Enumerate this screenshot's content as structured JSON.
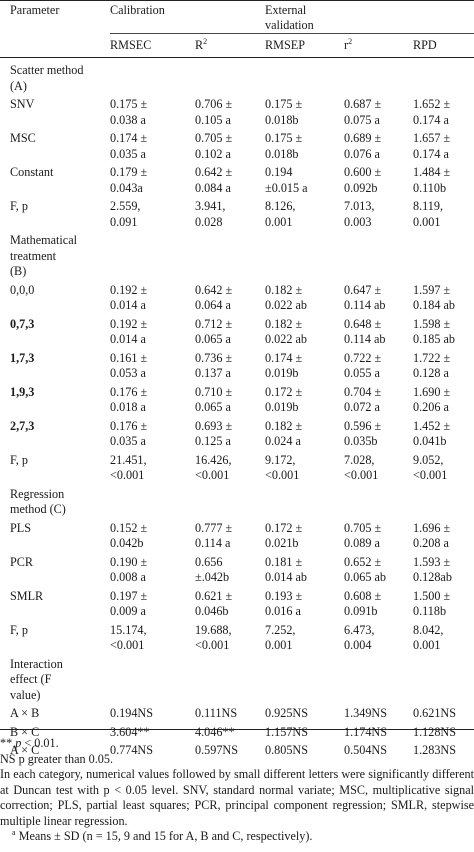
{
  "header": {
    "parameter": "Parameter",
    "calibration": "Calibration",
    "external_line1": "External",
    "external_line2": "validation",
    "rmsec": "RMSEC",
    "r2_base": "R",
    "r2_sup": "2",
    "rmsep": "RMSEP",
    "r2v_base": "r",
    "r2v_sup": "2",
    "rpd": "RPD"
  },
  "rows": [
    {
      "label": [
        "Scatter method",
        "(A)"
      ],
      "bold": false,
      "cells": []
    },
    {
      "label": [
        "SNV"
      ],
      "bold": false,
      "cells": [
        [
          "0.175 ±",
          "0.038 a"
        ],
        [
          "0.706 ±",
          "0.105 a"
        ],
        [
          "0.175 ±",
          "0.018b"
        ],
        [
          "0.687 ±",
          "0.075 a"
        ],
        [
          "1.652 ±",
          "0.174 a"
        ]
      ]
    },
    {
      "label": [
        "MSC"
      ],
      "bold": false,
      "cells": [
        [
          "0.174 ±",
          "0.035 a"
        ],
        [
          "0.705 ±",
          "0.102 a"
        ],
        [
          "0.175 ±",
          "0.018b"
        ],
        [
          "0.689 ±",
          "0.076 a"
        ],
        [
          "1.657 ±",
          "0.174 a"
        ]
      ]
    },
    {
      "label": [
        "Constant"
      ],
      "bold": false,
      "cells": [
        [
          "0.179 ±",
          "0.043a"
        ],
        [
          "0.642 ±",
          "0.084 a"
        ],
        [
          "0.194",
          "±0.015 a"
        ],
        [
          "0.600 ±",
          "0.092b"
        ],
        [
          "1.484 ±",
          "0.110b"
        ]
      ]
    },
    {
      "label": [
        "F, p"
      ],
      "bold": false,
      "cells": [
        [
          "2.559,",
          "0.091"
        ],
        [
          "3.941,",
          "0.028"
        ],
        [
          "8.126,",
          "0.001"
        ],
        [
          "7.013,",
          "0.003"
        ],
        [
          "8.119,",
          "0.001"
        ]
      ]
    },
    {
      "label": [
        "Mathematical",
        "treatment",
        "(B)"
      ],
      "bold": false,
      "cells": []
    },
    {
      "label": [
        "0,0,0"
      ],
      "bold": false,
      "cells": [
        [
          "0.192 ±",
          "0.014 a"
        ],
        [
          "0.642 ±",
          "0.064 a"
        ],
        [
          "0.182 ±",
          "0.022 ab"
        ],
        [
          "0.647 ±",
          "0.114 ab"
        ],
        [
          "1.597 ±",
          "0.184 ab"
        ]
      ]
    },
    {
      "label": [
        "0,7,3"
      ],
      "bold": true,
      "cells": [
        [
          "0.192 ±",
          "0.014 a"
        ],
        [
          "0.712 ±",
          "0.065 a"
        ],
        [
          "0.182 ±",
          "0.022 ab"
        ],
        [
          "0.648 ±",
          "0.114 ab"
        ],
        [
          "1.598 ±",
          "0.185 ab"
        ]
      ]
    },
    {
      "label": [
        "1,7,3"
      ],
      "bold": true,
      "cells": [
        [
          "0.161 ±",
          "0.053 a"
        ],
        [
          "0.736 ±",
          "0.137 a"
        ],
        [
          "0.174 ±",
          "0.019b"
        ],
        [
          "0.722 ±",
          "0.055 a"
        ],
        [
          "1.722 ±",
          "0.128 a"
        ]
      ]
    },
    {
      "label": [
        "1,9,3"
      ],
      "bold": true,
      "cells": [
        [
          "0.176 ±",
          "0.018 a"
        ],
        [
          "0.710 ±",
          "0.065 a"
        ],
        [
          "0.172 ±",
          "0.019b"
        ],
        [
          "0.704 ±",
          "0.072 a"
        ],
        [
          "1.690 ±",
          "0.206 a"
        ]
      ]
    },
    {
      "label": [
        "2,7,3"
      ],
      "bold": true,
      "cells": [
        [
          "0.176 ±",
          "0.035 a"
        ],
        [
          "0.693 ±",
          "0.125 a"
        ],
        [
          "0.182 ±",
          "0.024 a"
        ],
        [
          "0.596 ±",
          "0.035b"
        ],
        [
          "1.452 ±",
          "0.041b"
        ]
      ]
    },
    {
      "label": [
        "F, p"
      ],
      "bold": false,
      "cells": [
        [
          "21.451,",
          "<0.001"
        ],
        [
          "16.426,",
          "<0.001"
        ],
        [
          "9.172,",
          "<0.001"
        ],
        [
          "7.028,",
          "<0.001"
        ],
        [
          "9.052,",
          "<0.001"
        ]
      ]
    },
    {
      "label": [
        "Regression",
        "method (C)"
      ],
      "bold": false,
      "cells": []
    },
    {
      "label": [
        "PLS"
      ],
      "bold": false,
      "cells": [
        [
          "0.152 ±",
          "0.042b"
        ],
        [
          "0.777 ±",
          "0.114 a"
        ],
        [
          "0.172 ±",
          "0.021b"
        ],
        [
          "0.705 ±",
          "0.089 a"
        ],
        [
          "1.696 ±",
          "0.208 a"
        ]
      ]
    },
    {
      "label": [
        "PCR"
      ],
      "bold": false,
      "cells": [
        [
          "0.190 ±",
          "0.008 a"
        ],
        [
          "0.656",
          "±.042b"
        ],
        [
          "0.181 ±",
          "0.014 ab"
        ],
        [
          "0.652 ±",
          "0.065 ab"
        ],
        [
          "1.593 ±",
          "0.128ab"
        ]
      ]
    },
    {
      "label": [
        "SMLR"
      ],
      "bold": false,
      "cells": [
        [
          "0.197 ±",
          "0.009 a"
        ],
        [
          "0.621 ±",
          "0.046b"
        ],
        [
          "0.193 ±",
          "0.016 a"
        ],
        [
          "0.608 ±",
          "0.091b"
        ],
        [
          "1.500 ±",
          "0.118b"
        ]
      ]
    },
    {
      "label": [
        "F, p"
      ],
      "bold": false,
      "cells": [
        [
          "15.174,",
          "<0.001"
        ],
        [
          "19.688,",
          "<0.001"
        ],
        [
          "7.252,",
          "0.001"
        ],
        [
          "6.473,",
          "0.004"
        ],
        [
          "8.042,",
          "0.001"
        ]
      ]
    },
    {
      "label": [
        "Interaction",
        "effect (F",
        "value)"
      ],
      "bold": false,
      "cells": []
    },
    {
      "label": [
        "A × B"
      ],
      "bold": false,
      "cells": [
        [
          "0.194NS"
        ],
        [
          "0.111NS"
        ],
        [
          "0.925NS"
        ],
        [
          "1.349NS"
        ],
        [
          "0.621NS"
        ]
      ]
    },
    {
      "label": [
        "B × C"
      ],
      "bold": false,
      "cells": [
        [
          "3.604**"
        ],
        [
          "4.046**"
        ],
        [
          "1.157NS"
        ],
        [
          "1.174NS"
        ],
        [
          "1.128NS"
        ]
      ]
    },
    {
      "label": [
        "A × C"
      ],
      "bold": false,
      "cells": [
        [
          "0.774NS"
        ],
        [
          "0.597NS"
        ],
        [
          "0.805NS"
        ],
        [
          "0.504NS"
        ],
        [
          "1.283NS"
        ]
      ]
    }
  ],
  "notes": {
    "n1_stars": "**",
    "n1_p": "p",
    "n1_rest": " < 0.01.",
    "n2": "NS p greater than 0.05.",
    "n3": "In each category, numerical values followed by small different letters were significantly different at Duncan test with p < 0.05 level. SNV, standard normal variate; MSC, multiplicative signal correction; PLS, partial least squares; PCR, principal component regression; SMLR, stepwise multiple linear regression.",
    "n4_sup": "a",
    "n4": "Means ± SD (n = 15, 9 and 15 for A, B and C, respectively)."
  }
}
